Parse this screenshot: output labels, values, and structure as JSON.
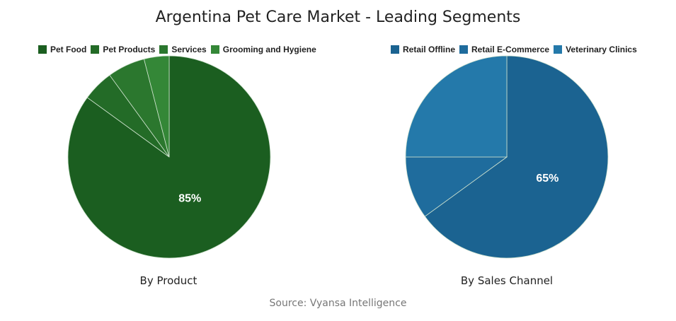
{
  "title": "Argentina Pet Care Market - Leading Segments",
  "source": "Source: Vyansa Intelligence",
  "chart_data": [
    {
      "type": "pie",
      "subtitle": "By Product",
      "categories": [
        "Pet Food",
        "Pet Products",
        "Services",
        "Grooming and Hygiene"
      ],
      "values": [
        85,
        5,
        6,
        4
      ],
      "colors": [
        "#1b5e20",
        "#236b27",
        "#2b772e",
        "#348737"
      ],
      "data_labels": [
        "85%",
        "",
        "",
        ""
      ],
      "legend": "top"
    },
    {
      "type": "pie",
      "subtitle": "By Sales Channel",
      "categories": [
        "Retail Offline",
        "Retail E-Commerce",
        "Veterinary Clinics"
      ],
      "values": [
        65,
        10,
        25
      ],
      "colors": [
        "#1b6391",
        "#1f6c9d",
        "#2479aa"
      ],
      "data_labels": [
        "65%",
        "",
        ""
      ],
      "legend": "top"
    }
  ]
}
